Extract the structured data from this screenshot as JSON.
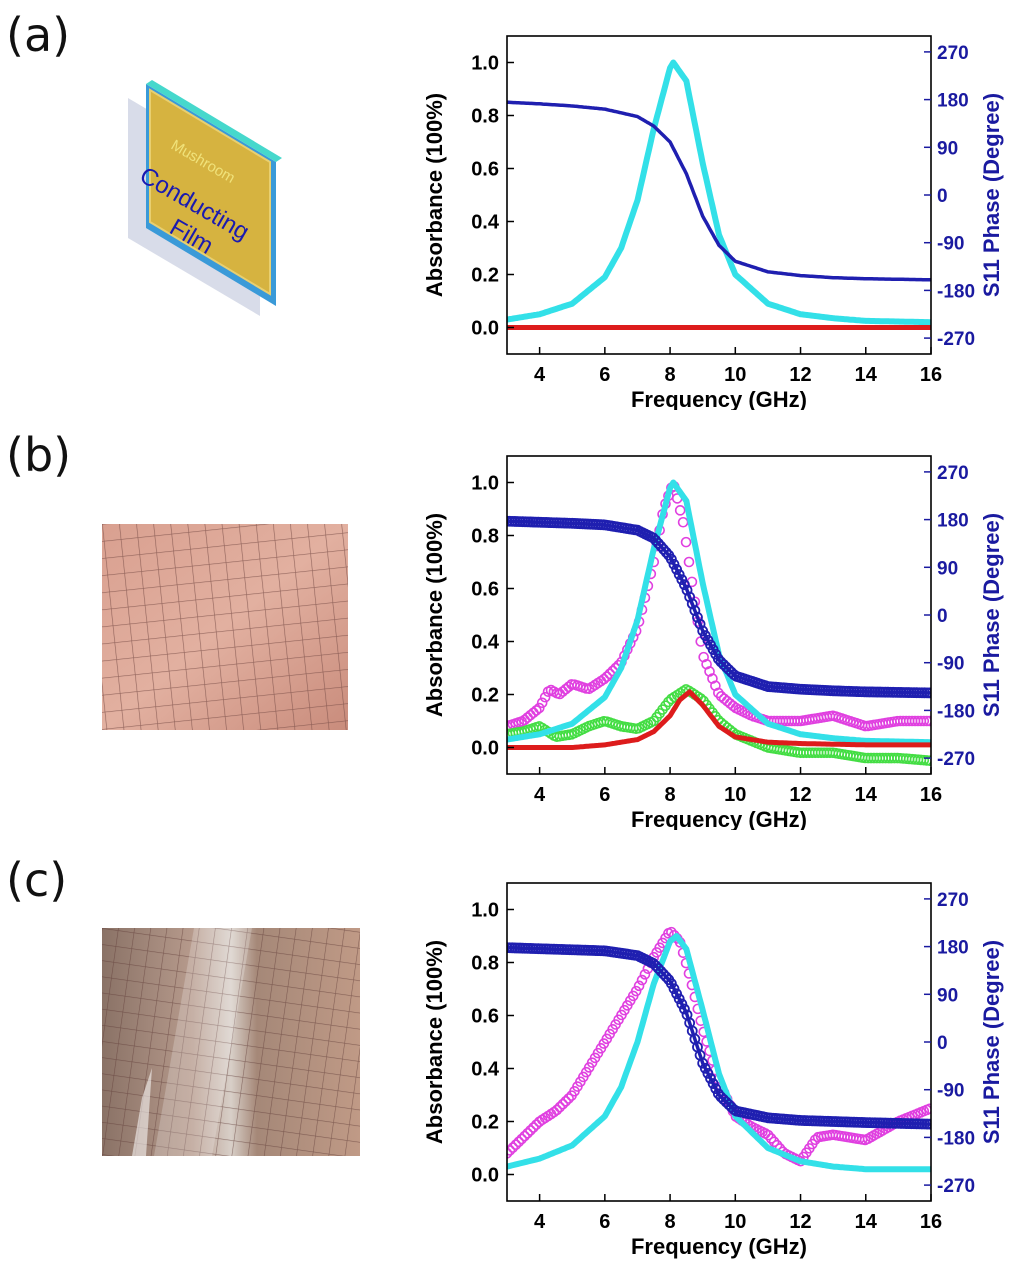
{
  "panels": [
    {
      "label": "(a)"
    },
    {
      "label": "(b)"
    },
    {
      "label": "(c)"
    }
  ],
  "schematic": {
    "word1": "Mushroom",
    "word2": "Conducting",
    "word3": "Film"
  },
  "colors": {
    "cyan": "#33e0e8",
    "blue": "#1f1fb0",
    "red": "#dd1c1c",
    "magenta": "#e040e0",
    "green": "#44dd44",
    "axis_right": "#1a1aa0"
  },
  "chart_data": [
    {
      "type": "line",
      "panel": "(a)",
      "xlabel": "Frequency (GHz)",
      "ylabel": "Absorbance (100%)",
      "y2label": "S11 Phase (Degree)",
      "xlim": [
        3,
        16
      ],
      "ylim": [
        -0.1,
        1.1
      ],
      "y2lim": [
        -300,
        300
      ],
      "xticks": [
        "4",
        "6",
        "8",
        "10",
        "12",
        "14",
        "16"
      ],
      "yticks": [
        "0.0",
        "0.2",
        "0.4",
        "0.6",
        "0.8",
        "1.0"
      ],
      "y2ticks": [
        "-270",
        "-180",
        "-90",
        "0",
        "90",
        "180",
        "270"
      ],
      "series": [
        {
          "axis": "left",
          "style": "line",
          "color": "cyan",
          "x": [
            3,
            4,
            5,
            6,
            6.5,
            7,
            7.5,
            8,
            8.1,
            8.5,
            9,
            9.5,
            10,
            11,
            12,
            13,
            14,
            16
          ],
          "y": [
            0.03,
            0.05,
            0.09,
            0.19,
            0.3,
            0.48,
            0.75,
            0.98,
            1.0,
            0.93,
            0.62,
            0.35,
            0.2,
            0.09,
            0.05,
            0.035,
            0.025,
            0.02
          ]
        },
        {
          "axis": "left",
          "style": "line",
          "color": "red",
          "x": [
            3,
            16
          ],
          "y": [
            0.0,
            0.0
          ]
        },
        {
          "axis": "right",
          "style": "line",
          "color": "blue",
          "x": [
            3,
            4,
            5,
            6,
            7,
            7.5,
            8,
            8.5,
            9,
            9.5,
            10,
            11,
            12,
            13,
            14,
            16
          ],
          "y": [
            175,
            172,
            168,
            162,
            148,
            130,
            100,
            40,
            -40,
            -95,
            -125,
            -145,
            -152,
            -156,
            -158,
            -160
          ]
        }
      ]
    },
    {
      "type": "line",
      "panel": "(b)",
      "xlabel": "Frequency (GHz)",
      "ylabel": "Absorbance (100%)",
      "y2label": "S11 Phase (Degree)",
      "xlim": [
        3,
        16
      ],
      "ylim": [
        -0.1,
        1.1
      ],
      "y2lim": [
        -300,
        300
      ],
      "xticks": [
        "4",
        "6",
        "8",
        "10",
        "12",
        "14",
        "16"
      ],
      "yticks": [
        "0.0",
        "0.2",
        "0.4",
        "0.6",
        "0.8",
        "1.0"
      ],
      "y2ticks": [
        "-270",
        "-180",
        "-90",
        "0",
        "90",
        "180",
        "270"
      ],
      "series": [
        {
          "axis": "left",
          "style": "markers",
          "color": "magenta",
          "x": [
            3,
            3.5,
            4,
            4.3,
            4.6,
            5,
            5.5,
            6,
            6.5,
            7,
            7.5,
            7.8,
            8.1,
            8.4,
            8.7,
            9,
            9.5,
            10,
            10.5,
            11,
            12,
            13,
            14,
            15,
            16
          ],
          "y": [
            0.08,
            0.1,
            0.15,
            0.22,
            0.2,
            0.24,
            0.22,
            0.26,
            0.32,
            0.45,
            0.7,
            0.9,
            1.0,
            0.85,
            0.6,
            0.35,
            0.2,
            0.15,
            0.12,
            0.1,
            0.1,
            0.12,
            0.08,
            0.1,
            0.1
          ]
        },
        {
          "axis": "left",
          "style": "markers",
          "color": "green",
          "x": [
            3,
            3.5,
            4,
            4.5,
            5,
            5.5,
            6,
            6.5,
            7,
            7.5,
            8,
            8.5,
            9,
            9.5,
            10,
            11,
            12,
            13,
            14,
            15,
            16
          ],
          "y": [
            0.05,
            0.06,
            0.08,
            0.04,
            0.05,
            0.08,
            0.1,
            0.08,
            0.07,
            0.1,
            0.18,
            0.22,
            0.18,
            0.1,
            0.05,
            0.0,
            -0.02,
            -0.02,
            -0.04,
            -0.04,
            -0.05
          ]
        },
        {
          "axis": "left",
          "style": "line",
          "color": "cyan",
          "x": [
            3,
            4,
            5,
            6,
            6.5,
            7,
            7.5,
            8,
            8.1,
            8.5,
            9,
            9.5,
            10,
            11,
            12,
            13,
            14,
            16
          ],
          "y": [
            0.03,
            0.05,
            0.09,
            0.19,
            0.3,
            0.48,
            0.75,
            0.98,
            1.0,
            0.93,
            0.62,
            0.35,
            0.2,
            0.09,
            0.05,
            0.035,
            0.025,
            0.02
          ]
        },
        {
          "axis": "left",
          "style": "line",
          "color": "red",
          "x": [
            3,
            4,
            5,
            6,
            7,
            7.5,
            8,
            8.3,
            8.6,
            9,
            9.5,
            10,
            11,
            12,
            14,
            16
          ],
          "y": [
            0.0,
            0.0,
            0.0,
            0.01,
            0.03,
            0.06,
            0.12,
            0.18,
            0.21,
            0.16,
            0.08,
            0.04,
            0.02,
            0.015,
            0.01,
            0.01
          ]
        },
        {
          "axis": "right",
          "style": "line+markers",
          "color": "blue",
          "x": [
            3,
            4,
            5,
            6,
            7,
            7.5,
            8,
            8.5,
            9,
            9.5,
            10,
            11,
            12,
            13,
            14,
            16
          ],
          "y": [
            177,
            175,
            173,
            170,
            160,
            145,
            110,
            50,
            -30,
            -85,
            -115,
            -135,
            -140,
            -143,
            -145,
            -147
          ]
        }
      ]
    },
    {
      "type": "line",
      "panel": "(c)",
      "xlabel": "Frequency (GHz)",
      "ylabel": "Absorbance (100%)",
      "y2label": "S11 Phase (Degree)",
      "xlim": [
        3,
        16
      ],
      "ylim": [
        -0.1,
        1.1
      ],
      "y2lim": [
        -300,
        300
      ],
      "xticks": [
        "4",
        "6",
        "8",
        "10",
        "12",
        "14",
        "16"
      ],
      "yticks": [
        "0.0",
        "0.2",
        "0.4",
        "0.6",
        "0.8",
        "1.0"
      ],
      "y2ticks": [
        "-270",
        "-180",
        "-90",
        "0",
        "90",
        "180",
        "270"
      ],
      "series": [
        {
          "axis": "left",
          "style": "markers",
          "color": "magenta",
          "x": [
            3,
            3.5,
            4,
            4.5,
            5,
            5.5,
            6,
            6.5,
            7,
            7.5,
            8,
            8.3,
            8.6,
            9,
            9.5,
            10,
            10.5,
            11,
            11.5,
            12,
            12.5,
            13,
            14,
            15,
            16
          ],
          "y": [
            0.08,
            0.14,
            0.2,
            0.24,
            0.3,
            0.4,
            0.5,
            0.6,
            0.7,
            0.82,
            0.92,
            0.88,
            0.75,
            0.55,
            0.35,
            0.22,
            0.18,
            0.15,
            0.08,
            0.05,
            0.14,
            0.15,
            0.13,
            0.2,
            0.25
          ]
        },
        {
          "axis": "left",
          "style": "line",
          "color": "cyan",
          "x": [
            3,
            4,
            5,
            6,
            6.5,
            7,
            7.5,
            8,
            8.2,
            8.5,
            9,
            9.5,
            10,
            11,
            12,
            13,
            14,
            16
          ],
          "y": [
            0.03,
            0.06,
            0.11,
            0.22,
            0.33,
            0.5,
            0.72,
            0.88,
            0.9,
            0.85,
            0.62,
            0.38,
            0.22,
            0.1,
            0.05,
            0.03,
            0.02,
            0.02
          ]
        },
        {
          "axis": "right",
          "style": "line+markers",
          "color": "blue",
          "x": [
            3,
            4,
            5,
            6,
            7,
            7.5,
            8,
            8.5,
            9,
            9.5,
            10,
            11,
            12,
            13,
            14,
            16
          ],
          "y": [
            178,
            176,
            174,
            172,
            163,
            148,
            115,
            55,
            -40,
            -100,
            -130,
            -143,
            -148,
            -150,
            -152,
            -155
          ]
        }
      ]
    }
  ]
}
